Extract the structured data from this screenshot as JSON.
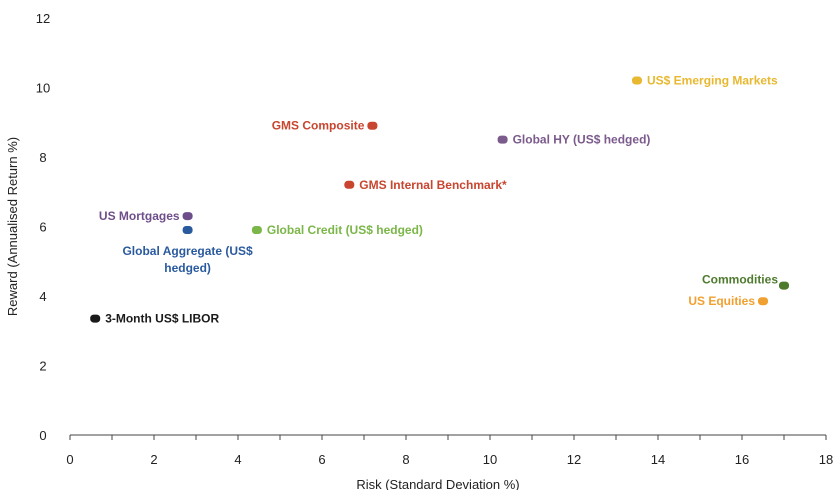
{
  "chart_data": {
    "type": "scatter",
    "title": "",
    "xlabel": "Risk (Standard Deviation %)",
    "ylabel": "Reward (Annualised Return %)",
    "xlim": [
      0,
      18
    ],
    "ylim": [
      0,
      12
    ],
    "xticks": [
      0,
      2,
      4,
      6,
      8,
      10,
      12,
      14,
      16,
      18
    ],
    "yticks": [
      0,
      2,
      4,
      6,
      8,
      10,
      12
    ],
    "grid": false,
    "legend": "none",
    "points": [
      {
        "label": "US$ Emerging Markets",
        "x": 13.5,
        "y": 10.2,
        "color": "#e8b830",
        "label_pos": "right"
      },
      {
        "label": "GMS Composite",
        "x": 7.2,
        "y": 8.9,
        "color": "#c8452f",
        "label_pos": "left"
      },
      {
        "label": "Global HY (US$ hedged)",
        "x": 10.3,
        "y": 8.5,
        "color": "#7b5a8c",
        "label_pos": "right"
      },
      {
        "label": "GMS Internal Benchmark*",
        "x": 6.65,
        "y": 7.2,
        "color": "#c8452f",
        "label_pos": "right"
      },
      {
        "label": "US Mortgages",
        "x": 2.8,
        "y": 6.3,
        "color": "#6e4e8a",
        "label_pos": "left"
      },
      {
        "label": "Global Credit (US$ hedged)",
        "x": 4.45,
        "y": 5.9,
        "color": "#7ab648",
        "label_pos": "right"
      },
      {
        "label": [
          "Global Aggregate (US$",
          "hedged)"
        ],
        "x": 2.8,
        "y": 5.9,
        "color": "#2a5a9e",
        "label_pos": "below"
      },
      {
        "label": "Commodities",
        "x": 17.0,
        "y": 4.3,
        "color": "#4e7a2e",
        "label_pos": "left-up"
      },
      {
        "label": "US Equities",
        "x": 16.5,
        "y": 3.85,
        "color": "#f0a030",
        "label_pos": "left"
      },
      {
        "label": "3-Month US$ LIBOR",
        "x": 0.6,
        "y": 3.35,
        "color": "#1a1a1a",
        "label_pos": "right"
      }
    ]
  }
}
